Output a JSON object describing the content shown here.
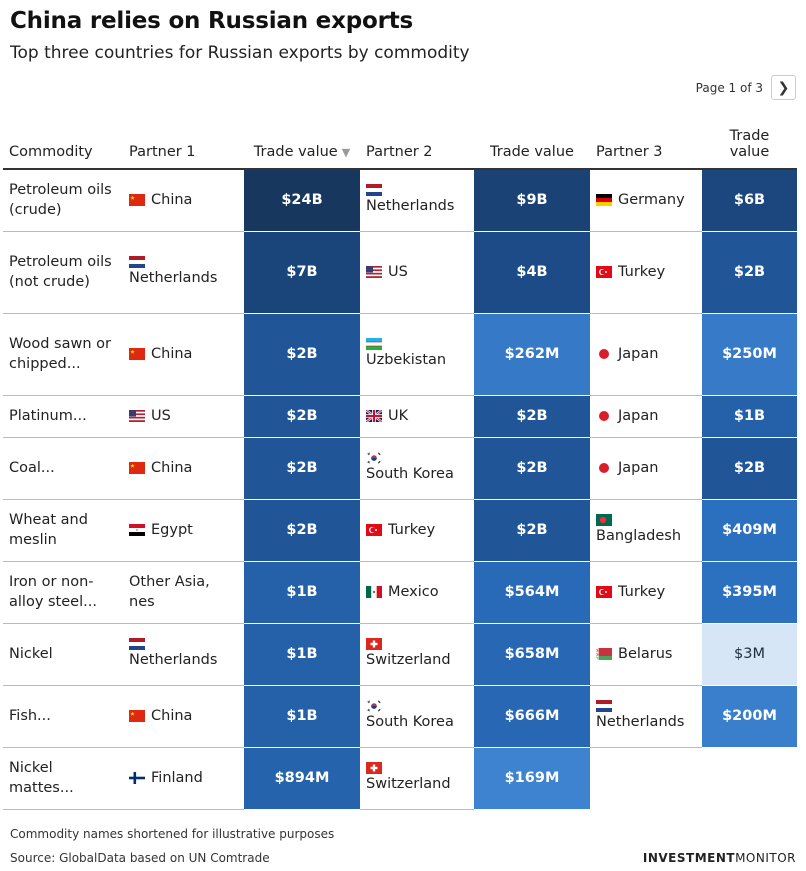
{
  "title": "China relies on Russian exports",
  "subtitle": "Top three countries for Russian exports by commodity",
  "pager": {
    "label": "Page 1 of 3",
    "next_icon": "chevron-right-icon"
  },
  "columns": {
    "commodity": "Commodity",
    "partner1": "Partner 1",
    "value1": "Trade value",
    "partner2": "Partner 2",
    "value2": "Trade value",
    "partner3": "Partner 3",
    "value3": "Trade value",
    "sort_icon": "sort-descending-icon"
  },
  "chart_data": {
    "type": "table",
    "title": "China relies on Russian exports",
    "subtitle": "Top three countries for Russian exports by commodity",
    "columns": [
      "Commodity",
      "Partner 1",
      "Trade value",
      "Partner 2",
      "Trade value",
      "Partner 3",
      "Trade value"
    ],
    "rows": [
      {
        "commodity": "Petroleum oils (crude)",
        "partners": [
          {
            "name": "China",
            "flag": "china",
            "value": "$24B",
            "usd": 24000000000
          },
          {
            "name": "Netherlands",
            "flag": "netherlands",
            "value": "$9B",
            "usd": 9000000000
          },
          {
            "name": "Germany",
            "flag": "germany",
            "value": "$6B",
            "usd": 6000000000
          }
        ]
      },
      {
        "commodity": "Petroleum oils (not crude)",
        "partners": [
          {
            "name": "Netherlands",
            "flag": "netherlands",
            "value": "$7B",
            "usd": 7000000000
          },
          {
            "name": "US",
            "flag": "us",
            "value": "$4B",
            "usd": 4000000000
          },
          {
            "name": "Turkey",
            "flag": "turkey",
            "value": "$2B",
            "usd": 2000000000
          }
        ]
      },
      {
        "commodity": "Wood sawn or chipped...",
        "partners": [
          {
            "name": "China",
            "flag": "china",
            "value": "$2B",
            "usd": 2000000000
          },
          {
            "name": "Uzbekistan",
            "flag": "uzbekistan",
            "value": "$262M",
            "usd": 262000000
          },
          {
            "name": "Japan",
            "flag": "japan",
            "value": "$250M",
            "usd": 250000000
          }
        ]
      },
      {
        "commodity": "Platinum...",
        "partners": [
          {
            "name": "US",
            "flag": "us",
            "value": "$2B",
            "usd": 2000000000
          },
          {
            "name": "UK",
            "flag": "uk",
            "value": "$2B",
            "usd": 2000000000
          },
          {
            "name": "Japan",
            "flag": "japan",
            "value": "$1B",
            "usd": 1000000000
          }
        ]
      },
      {
        "commodity": "Coal...",
        "partners": [
          {
            "name": "China",
            "flag": "china",
            "value": "$2B",
            "usd": 2000000000
          },
          {
            "name": "South Korea",
            "flag": "south-korea",
            "value": "$2B",
            "usd": 2000000000
          },
          {
            "name": "Japan",
            "flag": "japan",
            "value": "$2B",
            "usd": 2000000000
          }
        ]
      },
      {
        "commodity": "Wheat and meslin",
        "partners": [
          {
            "name": "Egypt",
            "flag": "egypt",
            "value": "$2B",
            "usd": 2000000000
          },
          {
            "name": "Turkey",
            "flag": "turkey",
            "value": "$2B",
            "usd": 2000000000
          },
          {
            "name": "Bangladesh",
            "flag": "bangladesh",
            "value": "$409M",
            "usd": 409000000
          }
        ]
      },
      {
        "commodity": "Iron or non-alloy steel...",
        "partners": [
          {
            "name": "Other Asia, nes",
            "flag": "",
            "value": "$1B",
            "usd": 1000000000
          },
          {
            "name": "Mexico",
            "flag": "mexico",
            "value": "$564M",
            "usd": 564000000
          },
          {
            "name": "Turkey",
            "flag": "turkey",
            "value": "$395M",
            "usd": 395000000
          }
        ]
      },
      {
        "commodity": "Nickel",
        "partners": [
          {
            "name": "Netherlands",
            "flag": "netherlands",
            "value": "$1B",
            "usd": 1000000000
          },
          {
            "name": "Switzerland",
            "flag": "switzerland",
            "value": "$658M",
            "usd": 658000000
          },
          {
            "name": "Belarus",
            "flag": "belarus",
            "value": "$3M",
            "usd": 3000000
          }
        ]
      },
      {
        "commodity": "Fish...",
        "partners": [
          {
            "name": "China",
            "flag": "china",
            "value": "$1B",
            "usd": 1000000000
          },
          {
            "name": "South Korea",
            "flag": "south-korea",
            "value": "$666M",
            "usd": 666000000
          },
          {
            "name": "Netherlands",
            "flag": "netherlands",
            "value": "$200M",
            "usd": 200000000
          }
        ]
      },
      {
        "commodity": "Nickel mattes...",
        "partners": [
          {
            "name": "Finland",
            "flag": "finland",
            "value": "$894M",
            "usd": 894000000
          },
          {
            "name": "Switzerland",
            "flag": "switzerland",
            "value": "$169M",
            "usd": 169000000
          }
        ]
      }
    ],
    "color_scale": {
      "min_color": "#d6e6f7",
      "max_color": "#17375f"
    }
  },
  "footnote": "Commodity names shortened for illustrative purposes",
  "source": "Source: GlobalData based on UN Comtrade",
  "brand": {
    "bold": "INVESTMENT",
    "light": "MONITOR"
  }
}
